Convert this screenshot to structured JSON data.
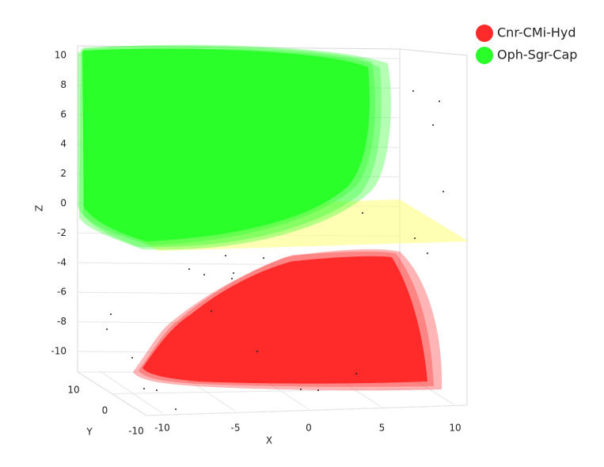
{
  "chart_data": {
    "type": "surface3d",
    "xlabel": "X",
    "ylabel": "Y",
    "zlabel": "Z",
    "xlim": [
      -10,
      10
    ],
    "xticks": [
      -10,
      -5,
      0,
      5,
      10
    ],
    "ylim": [
      -10,
      10
    ],
    "yticks": [
      -10,
      0,
      10
    ],
    "zlim": [
      -10,
      10
    ],
    "zticks": [
      -10,
      -8,
      -6,
      -4,
      -2,
      0,
      2,
      4,
      6,
      8,
      10
    ],
    "grid": true,
    "legend": "top-right",
    "series": [
      {
        "name": "Cnr-CMi-Hyd",
        "color": "#ff2a2a"
      },
      {
        "name": "Oph-Sgr-Cap",
        "color": "#2aff2a"
      }
    ]
  }
}
